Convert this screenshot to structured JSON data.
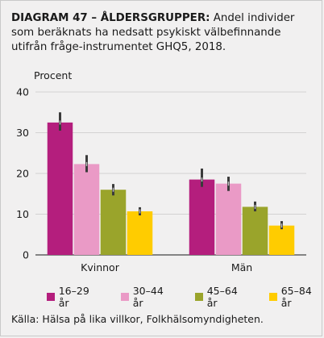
{
  "figure": {
    "title_bold": "DIAGRAM 47 – ÅLDERSGRUPPER:",
    "title_rest": " Andel individer som beräknats ha nedsatt psykiskt välbefinnande utifrån fråge-instrumentet GHQ5, 2018.",
    "source": "Källa: Hälsa på lika villkor, Folkhälsomyndigheten."
  },
  "chart_data": {
    "type": "bar",
    "title": "",
    "ylabel": "Procent",
    "xlabel": "",
    "ylim": [
      0,
      40
    ],
    "yticks": [
      0,
      10,
      20,
      30,
      40
    ],
    "grid": true,
    "legend_position": "bottom",
    "categories": [
      "Kvinnor",
      "Män"
    ],
    "series": [
      {
        "name": "16–29 år",
        "color": "#b41e7d",
        "values": [
          32.5,
          18.5
        ],
        "err_low": [
          30.5,
          16.7
        ],
        "err_high": [
          35.0,
          21.2
        ]
      },
      {
        "name": "30–44 år",
        "color": "#ea9ac6",
        "values": [
          22.3,
          17.5
        ],
        "err_low": [
          20.3,
          15.7
        ],
        "err_high": [
          24.5,
          19.2
        ]
      },
      {
        "name": "45–64 år",
        "color": "#9aa42b",
        "values": [
          16.0,
          11.8
        ],
        "err_low": [
          14.6,
          10.7
        ],
        "err_high": [
          17.4,
          13.1
        ]
      },
      {
        "name": "65–84 år",
        "color": "#ffcc00",
        "values": [
          10.7,
          7.2
        ],
        "err_low": [
          9.7,
          6.3
        ],
        "err_high": [
          11.7,
          8.3
        ]
      }
    ]
  }
}
